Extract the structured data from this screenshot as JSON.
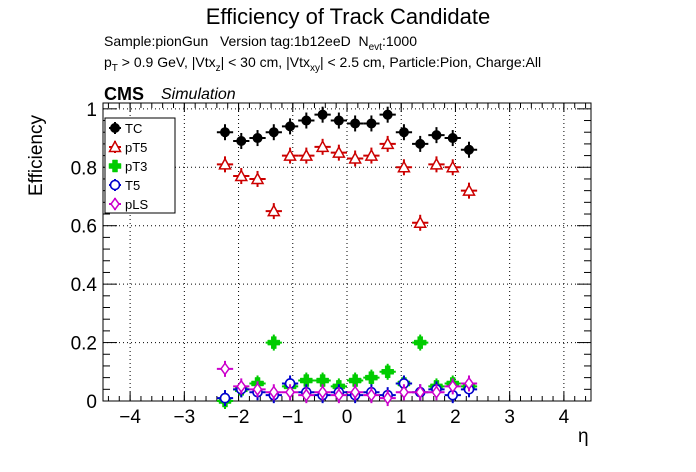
{
  "title": "Efficiency of Track Candidate",
  "info": {
    "sample_line": "Sample:pionGun   Version tag:1b12eeD  N_evt:1000",
    "cuts_line": "p_T > 0.9 GeV, |Vtx_z| < 30 cm, |Vtx_xy| < 2.5 cm, Particle:Pion, Charge:All",
    "cms": "CMS",
    "simulation": "Simulation"
  },
  "chart_data": {
    "type": "scatter",
    "title": "Efficiency of Track Candidate",
    "xlabel": "η",
    "ylabel": "Efficiency",
    "xlim": [
      -4.5,
      4.5
    ],
    "ylim": [
      0,
      1.02
    ],
    "xticks": [
      -4,
      -3,
      -2,
      -1,
      0,
      1,
      2,
      3,
      4
    ],
    "xtick_labels": [
      "−4",
      "−3",
      "−2",
      "−1",
      "0",
      "1",
      "2",
      "3",
      "4"
    ],
    "yticks": [
      0,
      0.2,
      0.4,
      0.6,
      0.8,
      1
    ],
    "ytick_labels": [
      "0",
      "0.2",
      "0.4",
      "0.6",
      "0.8",
      "1"
    ],
    "grid": true,
    "legend_position": "top-left",
    "bin_centers": [
      -2.25,
      -1.95,
      -1.65,
      -1.35,
      -1.05,
      -0.75,
      -0.45,
      -0.15,
      0.15,
      0.45,
      0.75,
      1.05,
      1.35,
      1.65,
      1.95,
      2.25
    ],
    "bin_half_width": 0.15,
    "series": [
      {
        "name": "TC",
        "color": "#000000",
        "marker": "circle-filled",
        "values": [
          0.92,
          0.89,
          0.9,
          0.92,
          0.94,
          0.96,
          0.98,
          0.96,
          0.95,
          0.95,
          0.98,
          0.92,
          0.88,
          0.91,
          0.9,
          0.86
        ]
      },
      {
        "name": "pT5",
        "color": "#cc0000",
        "marker": "triangle-open",
        "values": [
          0.81,
          0.77,
          0.76,
          0.65,
          0.84,
          0.84,
          0.87,
          0.85,
          0.83,
          0.84,
          0.88,
          0.8,
          0.61,
          0.81,
          0.8,
          0.72
        ]
      },
      {
        "name": "pT3",
        "color": "#00cc00",
        "marker": "cross",
        "values": [
          0.0,
          0.04,
          0.06,
          0.2,
          0.05,
          0.07,
          0.07,
          0.05,
          0.07,
          0.08,
          0.1,
          0.06,
          0.2,
          0.05,
          0.06,
          0.05
        ]
      },
      {
        "name": "T5",
        "color": "#0000cc",
        "marker": "circle-open",
        "values": [
          0.01,
          0.04,
          0.03,
          0.02,
          0.06,
          0.03,
          0.02,
          0.03,
          0.02,
          0.03,
          0.02,
          0.06,
          0.03,
          0.04,
          0.02,
          0.04
        ]
      },
      {
        "name": "pLS",
        "color": "#cc00cc",
        "marker": "diamond-open",
        "values": [
          0.11,
          0.05,
          0.04,
          0.03,
          0.03,
          0.02,
          0.03,
          0.02,
          0.03,
          0.02,
          0.01,
          0.03,
          0.03,
          0.03,
          0.05,
          0.06
        ]
      }
    ]
  }
}
